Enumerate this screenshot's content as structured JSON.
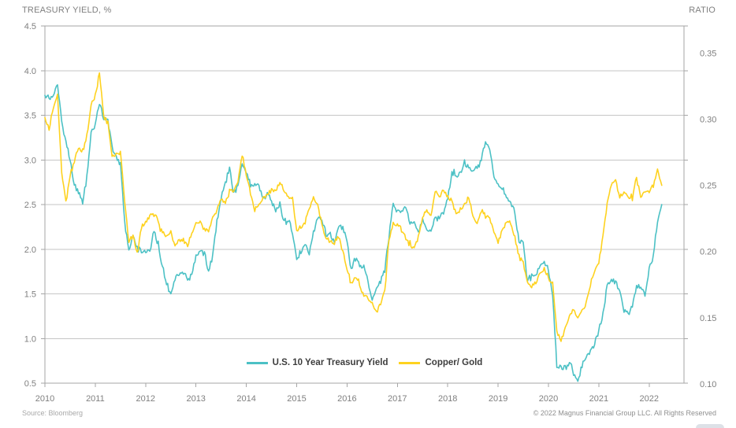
{
  "page": {
    "axis_title_left": "TREASURY YIELD, %",
    "axis_title_right": "RATIO",
    "source": "Source: Bloomberg",
    "copyright": "© 2022 Magnus Financial Group LLC. All Rights Reserved"
  },
  "colors": {
    "treasury_line": "#4cc1c5",
    "copper_gold_line": "#fed21f",
    "grid": "#c6c6c6",
    "border": "#a6a6a6",
    "axis_text": "#7f7f7f",
    "legend_text": "#3d3d3d",
    "footer_text": "#9b9b9b"
  },
  "legend": {
    "items": [
      {
        "label": "U.S. 10 Year Treasury Yield"
      },
      {
        "label": "Copper/ Gold"
      }
    ]
  },
  "chart_data": {
    "type": "line",
    "grid": "horizontal",
    "legend_position": "bottom-center-inside",
    "x": {
      "start_year": 2010,
      "interval": "monthly",
      "end_label": "2022-04",
      "tick_labels": [
        "2010",
        "2011",
        "2012",
        "2013",
        "2014",
        "2015",
        "2016",
        "2017",
        "2018",
        "2019",
        "2020",
        "2021",
        "2022"
      ]
    },
    "left_axis": {
      "title": "TREASURY YIELD, %",
      "min": 0.5,
      "max": 4.5,
      "tick_values": [
        4.5,
        4.0,
        3.5,
        3.0,
        2.5,
        2.0,
        1.5,
        1.0,
        0.5
      ],
      "tick_labels": [
        "4.5",
        "4.0",
        "3.5",
        "3.0",
        "2.5",
        "2.0",
        "1.5",
        "1.0",
        "0.5"
      ]
    },
    "right_axis": {
      "title": "RATIO",
      "min": 0.1005,
      "max": 0.3705,
      "tick_values": [
        0.35,
        0.3,
        0.25,
        0.2,
        0.15,
        0.1
      ],
      "tick_labels": [
        "0.35",
        "0.30",
        "0.25",
        "0.20",
        "0.15",
        "0.10"
      ]
    },
    "series": [
      {
        "name": "U.S. 10 Year Treasury Yield",
        "axis": "left",
        "color": "#4cc1c5",
        "values": [
          3.73,
          3.69,
          3.73,
          3.85,
          3.42,
          3.2,
          3.01,
          2.7,
          2.65,
          2.54,
          2.8,
          3.3,
          3.39,
          3.65,
          3.47,
          3.46,
          3.17,
          3.0,
          2.96,
          2.3,
          1.98,
          2.15,
          2.01,
          1.98,
          1.97,
          1.97,
          2.21,
          2.05,
          1.8,
          1.62,
          1.5,
          1.68,
          1.72,
          1.75,
          1.65,
          1.72,
          1.91,
          1.98,
          1.96,
          1.76,
          1.93,
          2.3,
          2.58,
          2.74,
          2.9,
          2.62,
          2.72,
          2.96,
          2.86,
          2.71,
          2.72,
          2.71,
          2.56,
          2.6,
          2.54,
          2.42,
          2.53,
          2.3,
          2.33,
          2.21,
          1.88,
          1.98,
          2.04,
          1.94,
          2.2,
          2.36,
          2.32,
          2.17,
          2.17,
          2.07,
          2.26,
          2.24,
          2.09,
          1.78,
          1.89,
          1.81,
          1.81,
          1.64,
          1.42,
          1.56,
          1.63,
          1.76,
          2.14,
          2.49,
          2.43,
          2.42,
          2.48,
          2.3,
          2.3,
          2.19,
          2.32,
          2.21,
          2.2,
          2.36,
          2.35,
          2.4,
          2.58,
          2.86,
          2.84,
          2.87,
          2.98,
          2.91,
          2.89,
          2.89,
          3.0,
          3.2,
          3.12,
          2.83,
          2.71,
          2.68,
          2.57,
          2.53,
          2.4,
          2.07,
          2.06,
          1.63,
          1.7,
          1.71,
          1.81,
          1.86,
          1.76,
          1.5,
          0.7,
          0.66,
          0.67,
          0.73,
          0.62,
          0.53,
          0.68,
          0.79,
          0.87,
          0.93,
          1.08,
          1.26,
          1.61,
          1.64,
          1.62,
          1.52,
          1.32,
          1.28,
          1.37,
          1.58,
          1.56,
          1.47,
          1.78,
          1.93,
          2.32,
          2.5
        ]
      },
      {
        "name": "Copper/ Gold",
        "axis": "right",
        "color": "#fed21f",
        "values": [
          0.3,
          0.292,
          0.31,
          0.318,
          0.26,
          0.238,
          0.258,
          0.268,
          0.278,
          0.276,
          0.288,
          0.31,
          0.318,
          0.335,
          0.302,
          0.298,
          0.272,
          0.272,
          0.276,
          0.238,
          0.208,
          0.212,
          0.198,
          0.218,
          0.222,
          0.228,
          0.228,
          0.222,
          0.213,
          0.212,
          0.214,
          0.204,
          0.208,
          0.21,
          0.204,
          0.213,
          0.22,
          0.222,
          0.216,
          0.215,
          0.226,
          0.232,
          0.24,
          0.236,
          0.246,
          0.246,
          0.252,
          0.274,
          0.258,
          0.244,
          0.23,
          0.236,
          0.241,
          0.243,
          0.246,
          0.247,
          0.252,
          0.246,
          0.241,
          0.24,
          0.216,
          0.218,
          0.222,
          0.232,
          0.24,
          0.236,
          0.22,
          0.21,
          0.206,
          0.206,
          0.212,
          0.2,
          0.186,
          0.176,
          0.181,
          0.176,
          0.166,
          0.166,
          0.16,
          0.155,
          0.16,
          0.17,
          0.21,
          0.22,
          0.221,
          0.216,
          0.21,
          0.206,
          0.203,
          0.211,
          0.226,
          0.231,
          0.226,
          0.246,
          0.241,
          0.246,
          0.241,
          0.238,
          0.228,
          0.231,
          0.236,
          0.241,
          0.226,
          0.221,
          0.231,
          0.226,
          0.226,
          0.216,
          0.206,
          0.216,
          0.222,
          0.221,
          0.211,
          0.196,
          0.191,
          0.176,
          0.173,
          0.176,
          0.183,
          0.188,
          0.181,
          0.176,
          0.14,
          0.134,
          0.141,
          0.151,
          0.156,
          0.151,
          0.156,
          0.161,
          0.176,
          0.186,
          0.191,
          0.212,
          0.236,
          0.25,
          0.254,
          0.241,
          0.246,
          0.241,
          0.241,
          0.256,
          0.241,
          0.246,
          0.246,
          0.25,
          0.262,
          0.25
        ]
      }
    ]
  }
}
